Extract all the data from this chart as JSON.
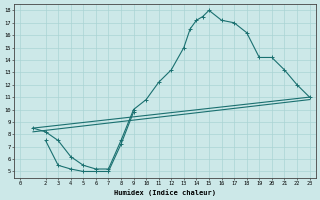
{
  "xlabel": "Humidex (Indice chaleur)",
  "xlim": [
    -0.5,
    23.5
  ],
  "ylim": [
    4.5,
    18.5
  ],
  "bg_color": "#cce8e8",
  "line_color": "#1a7070",
  "grid_color": "#aad4d4",
  "xticks": [
    0,
    2,
    3,
    4,
    5,
    6,
    7,
    8,
    9,
    10,
    11,
    12,
    13,
    14,
    15,
    16,
    17,
    18,
    19,
    20,
    21,
    22,
    23
  ],
  "yticks": [
    5,
    6,
    7,
    8,
    9,
    10,
    11,
    12,
    13,
    14,
    15,
    16,
    17,
    18
  ],
  "upper_curve_x": [
    1,
    2,
    3,
    4,
    5,
    6,
    7,
    8,
    9,
    10,
    11,
    12,
    13,
    13.5,
    14,
    14.5,
    15,
    16,
    17,
    18,
    19,
    20,
    21,
    22,
    23
  ],
  "upper_curve_y": [
    8.5,
    8.2,
    7.5,
    6.2,
    5.5,
    5.2,
    5.2,
    7.5,
    10.0,
    10.8,
    12.2,
    13.2,
    15.0,
    16.5,
    17.2,
    17.5,
    18.0,
    17.2,
    17.0,
    16.2,
    14.2,
    14.2,
    13.2,
    12.0,
    11.0
  ],
  "lower_curve_x": [
    2,
    3,
    4,
    5,
    6,
    7,
    8,
    9
  ],
  "lower_curve_y": [
    7.5,
    5.5,
    5.2,
    5.0,
    5.0,
    5.0,
    7.2,
    9.8
  ],
  "line1_x": [
    1,
    23
  ],
  "line1_y": [
    8.5,
    11.0
  ],
  "line2_x": [
    1,
    23
  ],
  "line2_y": [
    8.2,
    10.8
  ]
}
